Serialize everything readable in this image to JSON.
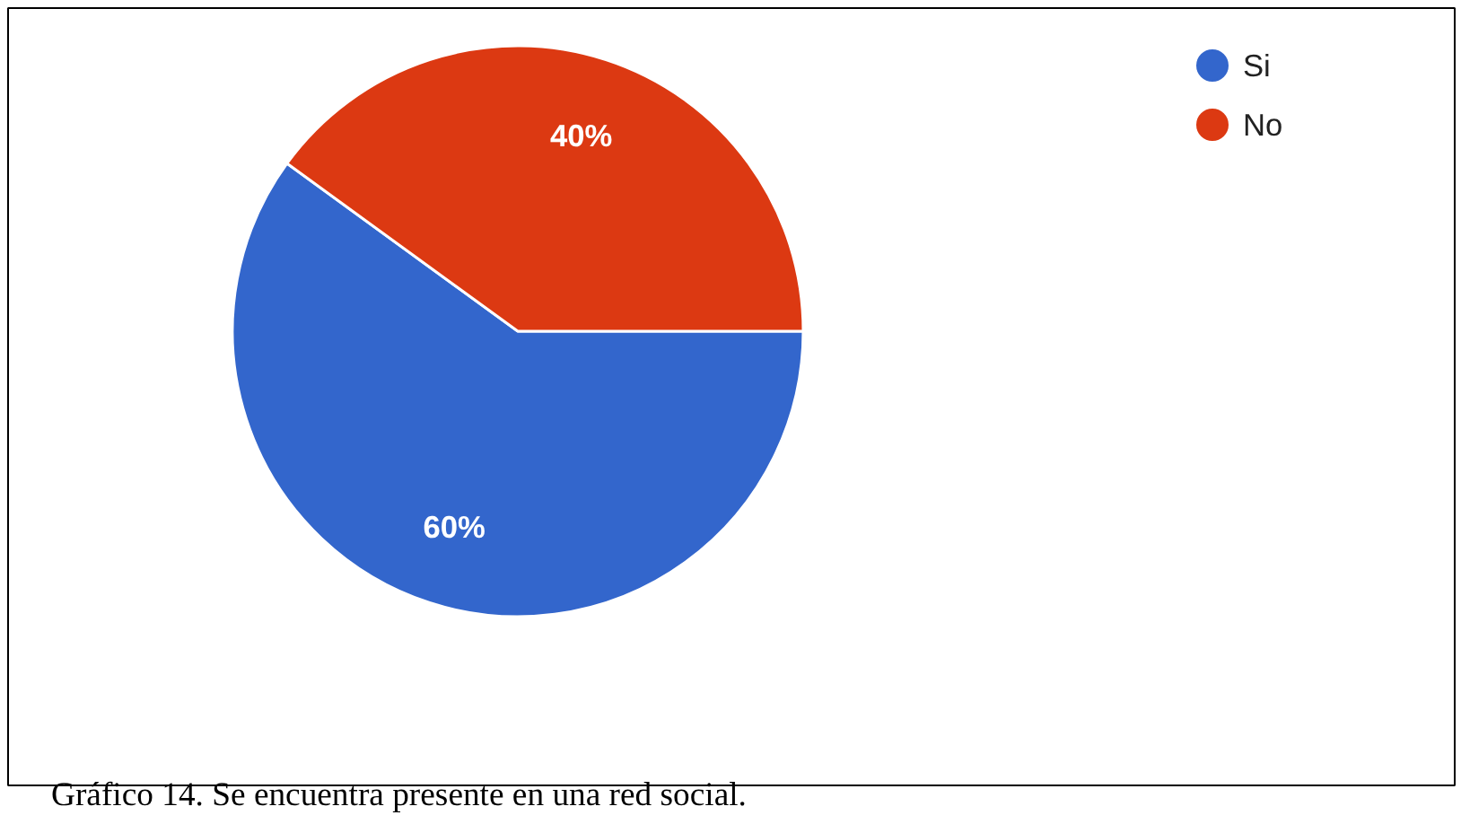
{
  "chart_data": {
    "type": "pie",
    "categories": [
      "Si",
      "No"
    ],
    "values": [
      60,
      40
    ],
    "colors": [
      "#3366cc",
      "#dc3912"
    ],
    "value_labels": [
      "60%",
      "40%"
    ],
    "legend": "top right",
    "annotations": [
      "Gráfico 14. Se encuentra presente en una red social."
    ]
  }
}
